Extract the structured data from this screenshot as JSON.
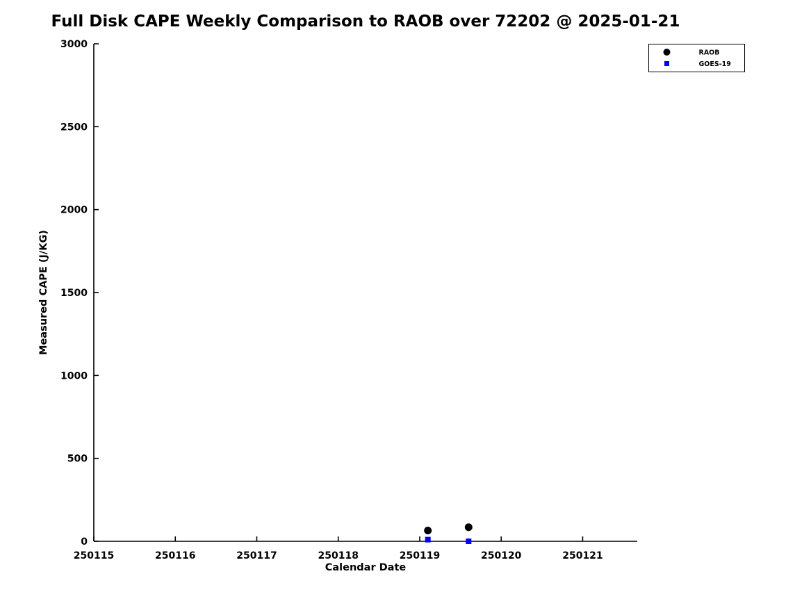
{
  "figure": {
    "background": "#ffffff"
  },
  "chart_data": {
    "type": "scatter",
    "title": "Full Disk CAPE Weekly Comparison to RAOB over 72202 @ 2025-01-21",
    "xlabel": "Calendar Date",
    "ylabel": "Measured CAPE (J/KG)",
    "xlim": [
      250115,
      250121.67
    ],
    "ylim": [
      0,
      3000
    ],
    "xticks": [
      250115,
      250116,
      250117,
      250118,
      250119,
      250120,
      250121
    ],
    "yticks": [
      0,
      500,
      1000,
      1500,
      2000,
      2500,
      3000
    ],
    "grid": false,
    "tick_direction": "in",
    "legend_position": "upper-right",
    "axis_color": "#000000",
    "series": [
      {
        "name": "RAOB",
        "marker": "circle",
        "color": "#000000",
        "points": [
          {
            "x": 250119.1,
            "y": 65
          },
          {
            "x": 250119.6,
            "y": 85
          }
        ]
      },
      {
        "name": "GOES-19",
        "marker": "square",
        "color": "#0000ff",
        "points": [
          {
            "x": 250119.1,
            "y": 10
          },
          {
            "x": 250119.6,
            "y": 0
          }
        ]
      }
    ]
  }
}
